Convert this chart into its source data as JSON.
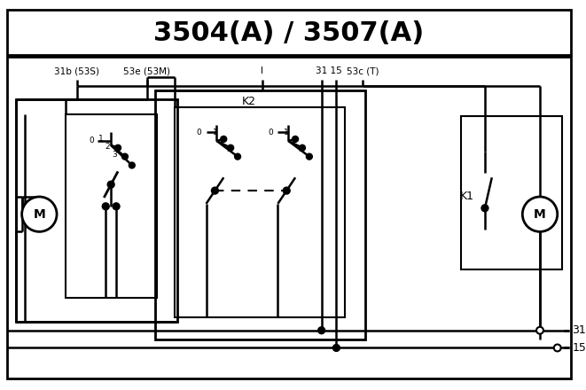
{
  "title": "3504(A) / 3507(A)",
  "bg_color": "#ffffff",
  "line_color": "#000000",
  "pin_labels": [
    "31b (53S)",
    "53e (53M)",
    "I",
    "31 15",
    "53c (T)"
  ],
  "p31b": 88,
  "p53e": 168,
  "pI": 300,
  "p31": 368,
  "p15": 385,
  "p53c": 415,
  "lw": 1.8
}
